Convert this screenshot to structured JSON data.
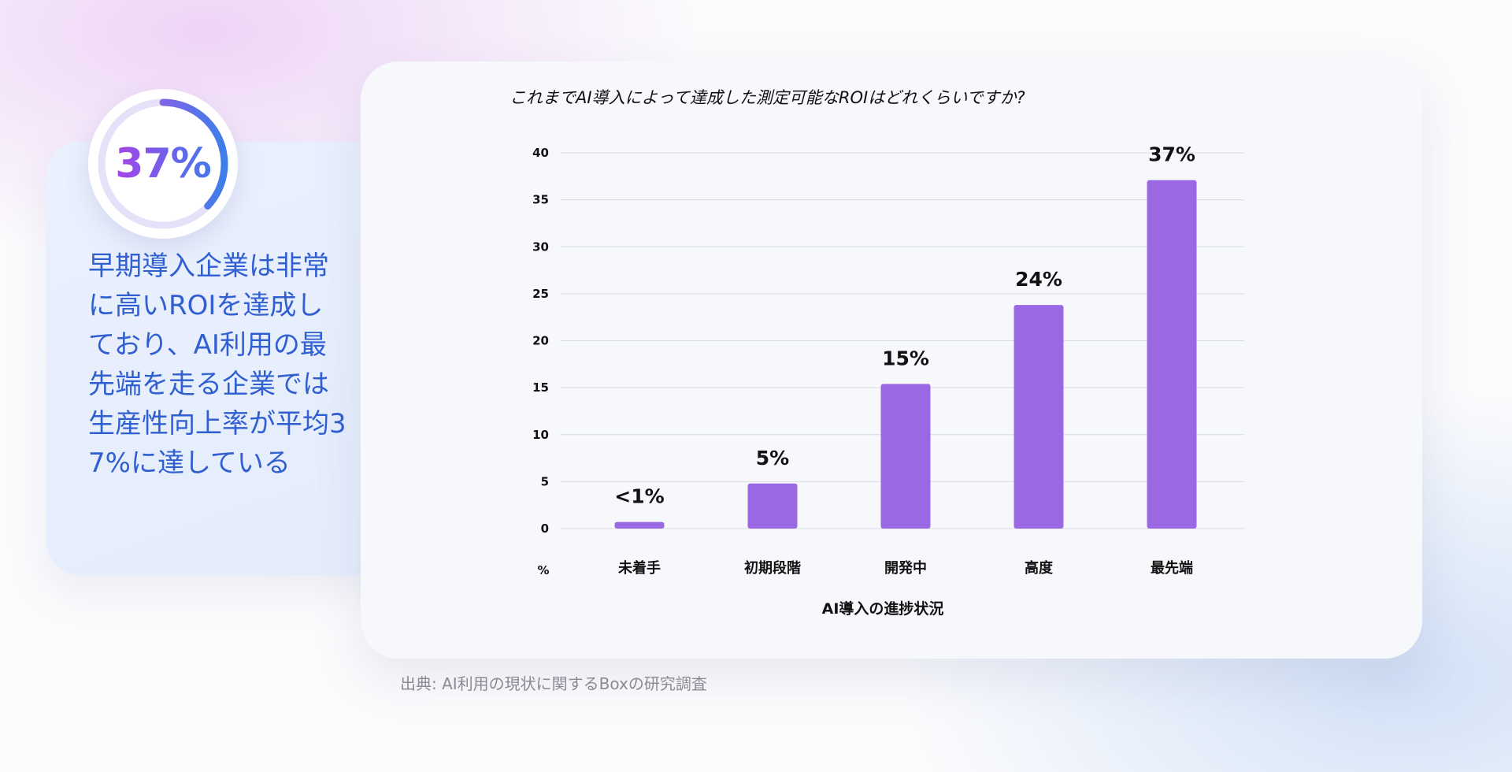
{
  "stat": {
    "value": "37%",
    "fraction": 0.37,
    "text": "早期導入企業は非常に高いROIを達成しており、AI利用の最先端を走る企業では生産性向上率が平均37%に達している"
  },
  "chart_data": {
    "type": "bar",
    "title": "これまでAI導入によって達成した測定可能なROIはどれくらいですか?",
    "xlabel": "AI導入の進捗状況",
    "ylabel": "%",
    "categories": [
      "未着手",
      "初期段階",
      "開発中",
      "高度",
      "最先端"
    ],
    "values": [
      0.7,
      4.8,
      15.4,
      23.8,
      37.1
    ],
    "data_labels": [
      "<1%",
      "5%",
      "15%",
      "24%",
      "37%"
    ],
    "yticks": [
      0,
      5,
      10,
      15,
      20,
      25,
      30,
      35,
      40
    ],
    "ylim": [
      0,
      40
    ],
    "grid": true,
    "bar_color": "#9b68e3"
  },
  "source": "出典: AI利用の現状に関するBoxの研究調査",
  "colors": {
    "ring_start": "#c04ce6",
    "ring_end": "#3e7ee8",
    "ring_track": "#e6e0f8",
    "stat_text": "#2f5fd0"
  }
}
